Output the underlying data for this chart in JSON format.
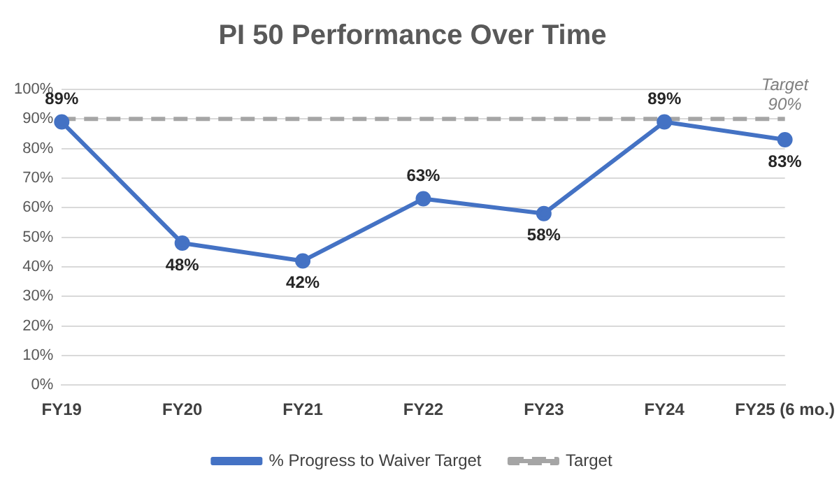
{
  "chart_data": {
    "type": "line",
    "title": "PI 50 Performance Over Time",
    "categories": [
      "FY19",
      "FY20",
      "FY21",
      "FY22",
      "FY23",
      "FY24",
      "FY25 (6 mo.)"
    ],
    "series": [
      {
        "name": "% Progress to Waiver Target",
        "color": "#4472c4",
        "values": [
          89,
          48,
          42,
          63,
          58,
          89,
          83
        ],
        "marker": "circle",
        "line_style": "solid",
        "value_labels": [
          "89%",
          "48%",
          "42%",
          "63%",
          "58%",
          "89%",
          "83%"
        ]
      },
      {
        "name": "Target",
        "color": "#a5a5a5",
        "values": [
          90,
          90,
          90,
          90,
          90,
          90,
          90
        ],
        "marker": "none",
        "line_style": "dashed"
      }
    ],
    "annotations": [
      {
        "text": "Target 90%",
        "x": "FY25 (6 mo.)",
        "y": 90
      }
    ],
    "ylim": [
      0,
      100
    ],
    "yticks": [
      {
        "value": 0,
        "label": "0%"
      },
      {
        "value": 10,
        "label": "10%"
      },
      {
        "value": 20,
        "label": "20%"
      },
      {
        "value": 30,
        "label": "30%"
      },
      {
        "value": 40,
        "label": "40%"
      },
      {
        "value": 50,
        "label": "50%"
      },
      {
        "value": 60,
        "label": "60%"
      },
      {
        "value": 70,
        "label": "70%"
      },
      {
        "value": 80,
        "label": "80%"
      },
      {
        "value": 90,
        "label": "90%"
      },
      {
        "value": 100,
        "label": "100%"
      }
    ],
    "grid": "y",
    "legend": "bottom"
  }
}
